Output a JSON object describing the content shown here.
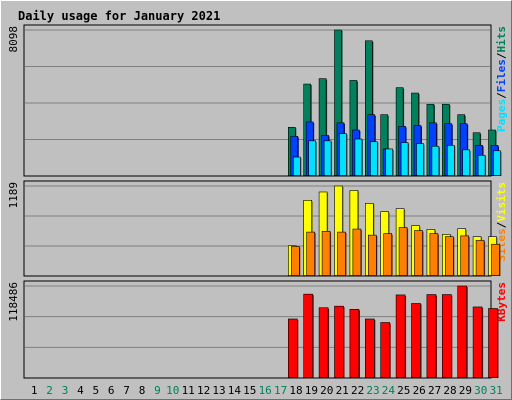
{
  "chart_data": [
    {
      "type": "bar",
      "panel": "top",
      "title": "Daily usage for January 2021",
      "ymax_label": "8098",
      "ylim": [
        0,
        8098
      ],
      "categories": [
        "1",
        "2",
        "3",
        "4",
        "5",
        "6",
        "7",
        "8",
        "9",
        "10",
        "11",
        "12",
        "13",
        "14",
        "15",
        "16",
        "17",
        "18",
        "19",
        "20",
        "21",
        "22",
        "23",
        "24",
        "25",
        "26",
        "27",
        "28",
        "29",
        "30",
        "31"
      ],
      "weekend_days": [
        "2",
        "3",
        "9",
        "10",
        "16",
        "17",
        "23",
        "24",
        "30",
        "31"
      ],
      "series": [
        {
          "name": "Hits",
          "color": "#00805c",
          "values": [
            null,
            null,
            null,
            null,
            null,
            null,
            null,
            null,
            null,
            null,
            null,
            null,
            null,
            null,
            null,
            null,
            null,
            2700,
            5100,
            5400,
            8098,
            5300,
            7500,
            3400,
            4900,
            4600,
            3980,
            3980,
            3400,
            2400,
            2550
          ]
        },
        {
          "name": "Files",
          "color": "#0040ff",
          "values": [
            null,
            null,
            null,
            null,
            null,
            null,
            null,
            null,
            null,
            null,
            null,
            null,
            null,
            null,
            null,
            null,
            null,
            2200,
            3000,
            2250,
            2950,
            2550,
            3400,
            1500,
            2750,
            2800,
            2950,
            2900,
            2900,
            1700,
            1700
          ]
        },
        {
          "name": "Pages",
          "color": "#00e0ff",
          "values": [
            null,
            null,
            null,
            null,
            null,
            null,
            null,
            null,
            null,
            null,
            null,
            null,
            null,
            null,
            null,
            null,
            null,
            1050,
            1950,
            1950,
            2350,
            2050,
            1900,
            1500,
            1850,
            1800,
            1650,
            1700,
            1450,
            1150,
            1400
          ]
        }
      ],
      "axis_label_parts": [
        {
          "text": "Pages",
          "color": "#00e0ff"
        },
        {
          "text": "/",
          "color": "#000000"
        },
        {
          "text": "Files",
          "color": "#0040ff"
        },
        {
          "text": "/",
          "color": "#000000"
        },
        {
          "text": "Hits",
          "color": "#00805c"
        }
      ]
    },
    {
      "type": "bar",
      "panel": "middle",
      "ymax_label": "1189",
      "ylim": [
        0,
        1189
      ],
      "categories": [
        "1",
        "2",
        "3",
        "4",
        "5",
        "6",
        "7",
        "8",
        "9",
        "10",
        "11",
        "12",
        "13",
        "14",
        "15",
        "16",
        "17",
        "18",
        "19",
        "20",
        "21",
        "22",
        "23",
        "24",
        "25",
        "26",
        "27",
        "28",
        "29",
        "30",
        "31"
      ],
      "series": [
        {
          "name": "Visits",
          "color": "#ffff00",
          "values": [
            null,
            null,
            null,
            null,
            null,
            null,
            null,
            null,
            null,
            null,
            null,
            null,
            null,
            null,
            null,
            null,
            null,
            400,
            1000,
            1110,
            1189,
            1130,
            960,
            850,
            890,
            665,
            615,
            550,
            625,
            520,
            520
          ]
        },
        {
          "name": "Sites",
          "color": "#ff8000",
          "values": [
            null,
            null,
            null,
            null,
            null,
            null,
            null,
            null,
            null,
            null,
            null,
            null,
            null,
            null,
            null,
            null,
            null,
            390,
            580,
            590,
            580,
            620,
            540,
            560,
            640,
            600,
            560,
            520,
            530,
            470,
            420
          ]
        }
      ],
      "axis_label_parts": [
        {
          "text": "Sites",
          "color": "#ff8000"
        },
        {
          "text": "/",
          "color": "#000000"
        },
        {
          "text": "Visits",
          "color": "#ffff00"
        }
      ]
    },
    {
      "type": "bar",
      "panel": "bottom",
      "ymax_label": "118486",
      "ylim": [
        0,
        118486
      ],
      "categories": [
        "1",
        "2",
        "3",
        "4",
        "5",
        "6",
        "7",
        "8",
        "9",
        "10",
        "11",
        "12",
        "13",
        "14",
        "15",
        "16",
        "17",
        "18",
        "19",
        "20",
        "21",
        "22",
        "23",
        "24",
        "25",
        "26",
        "27",
        "28",
        "29",
        "30",
        "31"
      ],
      "series": [
        {
          "name": "KBytes",
          "color": "#ff0000",
          "values": [
            null,
            null,
            null,
            null,
            null,
            null,
            null,
            null,
            null,
            null,
            null,
            null,
            null,
            null,
            null,
            null,
            null,
            76000,
            108000,
            90500,
            92500,
            88500,
            76000,
            71500,
            107000,
            96000,
            107500,
            107500,
            118486,
            91500,
            89500
          ]
        }
      ],
      "axis_label_parts": [
        {
          "text": "KBytes",
          "color": "#ff0000"
        }
      ]
    }
  ],
  "colors": {
    "background": "#c0c0c0",
    "title": "#0000ff",
    "weekday_label": "#000000",
    "weekend_label": "#00805c",
    "gridline": "#808080"
  }
}
